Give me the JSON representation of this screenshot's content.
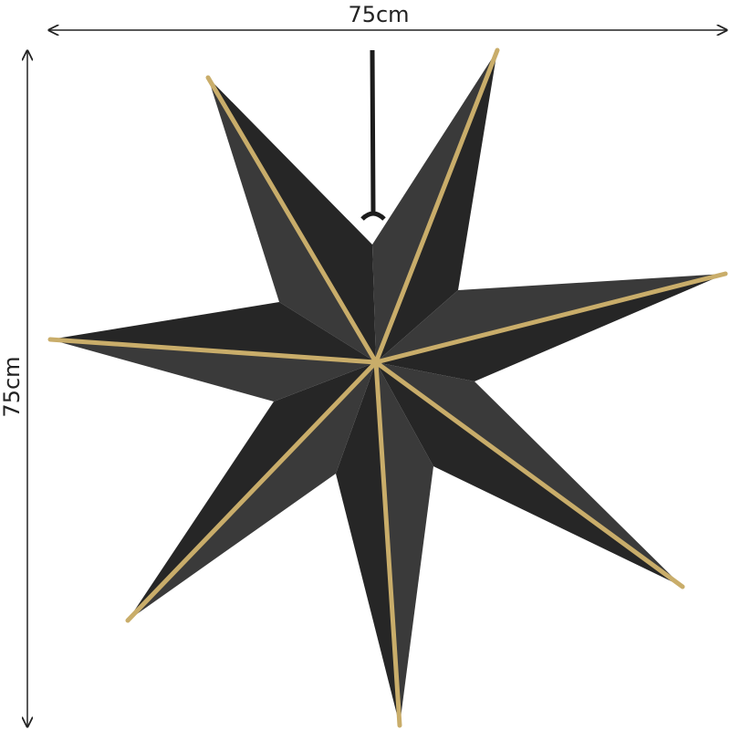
{
  "dimensions": {
    "width_label": "75cm",
    "height_label": "75cm"
  },
  "product": {
    "name_icon": "seven-point-paper-star",
    "body_color": "#2e2e2e",
    "trim_color": "#c9ad6a"
  }
}
